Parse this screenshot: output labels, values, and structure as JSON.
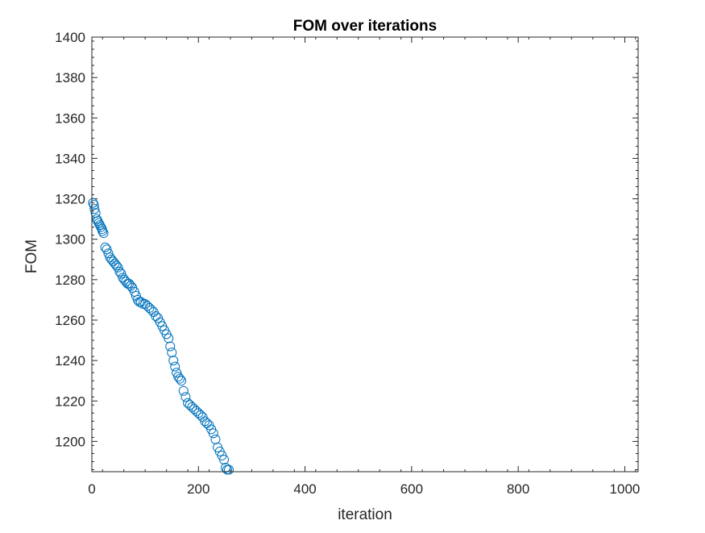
{
  "chart_data": {
    "type": "scatter",
    "title": "FOM over iterations",
    "xlabel": "iteration",
    "ylabel": "FOM",
    "xlim": [
      0,
      1025
    ],
    "ylim": [
      1185,
      1400
    ],
    "xticks": [
      0,
      200,
      400,
      600,
      800,
      1000
    ],
    "yticks": [
      1200,
      1220,
      1240,
      1260,
      1280,
      1300,
      1320,
      1340,
      1360,
      1380,
      1400
    ],
    "xtick_labels": [
      "0",
      "200",
      "400",
      "600",
      "800",
      "1000"
    ],
    "ytick_labels": [
      "1200",
      "1220",
      "1240",
      "1260",
      "1280",
      "1300",
      "1320",
      "1340",
      "1360",
      "1380",
      "1400"
    ],
    "grid": false,
    "marker": "open-circle",
    "marker_color": "#0072BD",
    "series": [
      {
        "x": [
          2,
          4,
          5,
          7,
          9,
          11,
          13,
          15,
          17,
          19,
          20,
          22,
          25,
          28,
          31,
          34,
          37,
          40,
          43,
          46,
          49,
          52,
          55,
          58,
          61,
          64,
          67,
          70,
          73,
          76,
          80,
          83,
          86,
          89,
          92,
          96,
          100,
          104,
          108,
          112,
          116,
          120,
          124,
          128,
          132,
          136,
          140,
          144,
          147,
          150,
          153,
          156,
          159,
          162,
          165,
          168,
          172,
          176,
          180,
          184,
          188,
          192,
          196,
          200,
          204,
          208,
          212,
          216,
          220,
          224,
          228,
          232,
          236,
          240,
          244,
          248,
          251,
          254,
          257
        ],
        "y": [
          1318,
          1317,
          1315,
          1313,
          1310,
          1309,
          1308,
          1307,
          1306,
          1305,
          1304,
          1303,
          1296,
          1295,
          1293,
          1291,
          1290,
          1289,
          1288,
          1287,
          1286,
          1284,
          1283,
          1281,
          1280,
          1279,
          1278,
          1278,
          1277,
          1276,
          1274,
          1272,
          1270,
          1269,
          1269,
          1268,
          1268,
          1267,
          1266,
          1265,
          1264,
          1262,
          1261,
          1259,
          1257,
          1255,
          1253,
          1251,
          1247,
          1244,
          1240,
          1237,
          1234,
          1232,
          1231,
          1230,
          1225,
          1222,
          1219,
          1218,
          1217,
          1216,
          1215,
          1214,
          1213,
          1212,
          1210,
          1209,
          1208,
          1206,
          1204,
          1201,
          1197,
          1195,
          1193,
          1191,
          1187,
          1186,
          1186
        ]
      }
    ]
  }
}
